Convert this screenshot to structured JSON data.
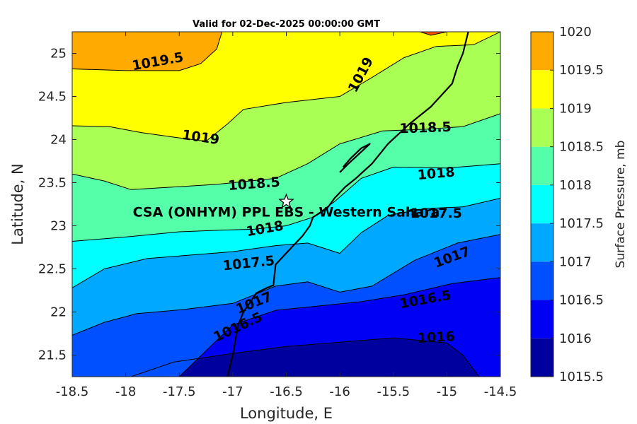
{
  "chart_data": {
    "type": "contour",
    "title": "Valid for 02-Dec-2025 00:00:00 GMT",
    "xlabel": "Longitude, E",
    "ylabel": "Latitude, N",
    "xlim": [
      -18.5,
      -14.5
    ],
    "ylim": [
      21.25,
      25.25
    ],
    "xticks": [
      "-18.5",
      "-18",
      "-17.5",
      "-17",
      "-16.5",
      "-16",
      "-15.5",
      "-15",
      "-14.5"
    ],
    "yticks": [
      "21.5",
      "22",
      "22.5",
      "23",
      "23.5",
      "24",
      "24.5",
      "25"
    ],
    "colorbar": {
      "label": "Surface Pressure, mb",
      "levels": [
        1015.5,
        1016,
        1016.5,
        1017,
        1017.5,
        1018,
        1018.5,
        1019,
        1019.5,
        1020
      ],
      "tick_labels": [
        "1015.5",
        "1016",
        "1016.5",
        "1017",
        "1017.5",
        "1018",
        "1018.5",
        "1019",
        "1019.5",
        "1020"
      ],
      "colors": [
        "#00009e",
        "#0000f5",
        "#0050ff",
        "#00a8ff",
        "#00ffff",
        "#55ffaa",
        "#aaff55",
        "#ffff00",
        "#ffaa00",
        "#ff5500"
      ]
    },
    "contour_lines": [
      {
        "level": 1016,
        "points": [
          [
            -17.95,
            21.25
          ],
          [
            -17.55,
            21.42
          ],
          [
            -17.0,
            21.52
          ],
          [
            -16.5,
            21.6
          ],
          [
            -16.0,
            21.65
          ],
          [
            -15.5,
            21.7
          ],
          [
            -15.0,
            21.64
          ],
          [
            -14.85,
            21.5
          ],
          [
            -14.7,
            21.25
          ]
        ]
      },
      {
        "level": 1016.5,
        "points": [
          [
            -17.5,
            21.25
          ],
          [
            -17.25,
            21.55
          ],
          [
            -17.0,
            21.85
          ],
          [
            -16.6,
            22.02
          ],
          [
            -16.2,
            22.07
          ],
          [
            -15.8,
            22.12
          ],
          [
            -15.4,
            22.2
          ],
          [
            -14.95,
            22.33
          ],
          [
            -14.5,
            22.4
          ]
        ]
      },
      {
        "level": 1017,
        "points": [
          [
            -18.5,
            21.73
          ],
          [
            -18.2,
            21.88
          ],
          [
            -17.9,
            21.98
          ],
          [
            -17.45,
            22.03
          ],
          [
            -17.0,
            22.1
          ],
          [
            -16.6,
            22.3
          ],
          [
            -16.3,
            22.35
          ],
          [
            -16.0,
            22.23
          ],
          [
            -15.7,
            22.3
          ],
          [
            -15.3,
            22.6
          ],
          [
            -14.9,
            22.8
          ],
          [
            -14.5,
            22.9
          ]
        ]
      },
      {
        "level": 1017.5,
        "points": [
          [
            -18.5,
            22.28
          ],
          [
            -18.2,
            22.5
          ],
          [
            -17.8,
            22.62
          ],
          [
            -17.4,
            22.66
          ],
          [
            -17.0,
            22.7
          ],
          [
            -16.6,
            22.77
          ],
          [
            -16.3,
            22.8
          ],
          [
            -16.0,
            22.68
          ],
          [
            -15.8,
            22.92
          ],
          [
            -15.55,
            23.12
          ],
          [
            -15.2,
            23.2
          ],
          [
            -14.85,
            23.22
          ],
          [
            -14.5,
            23.32
          ]
        ]
      },
      {
        "level": 1018,
        "points": [
          [
            -18.5,
            22.82
          ],
          [
            -18.0,
            22.87
          ],
          [
            -17.5,
            22.93
          ],
          [
            -17.1,
            22.95
          ],
          [
            -16.8,
            22.96
          ],
          [
            -16.5,
            23.0
          ],
          [
            -16.25,
            23.1
          ],
          [
            -16.05,
            23.28
          ],
          [
            -15.8,
            23.55
          ],
          [
            -15.5,
            23.68
          ],
          [
            -15.0,
            23.67
          ],
          [
            -14.5,
            23.72
          ]
        ]
      },
      {
        "level": 1018.5,
        "points": [
          [
            -18.5,
            23.6
          ],
          [
            -18.2,
            23.52
          ],
          [
            -17.95,
            23.42
          ],
          [
            -17.55,
            23.45
          ],
          [
            -17.15,
            23.48
          ],
          [
            -16.6,
            23.55
          ],
          [
            -16.3,
            23.72
          ],
          [
            -16.0,
            23.95
          ],
          [
            -15.6,
            24.1
          ],
          [
            -15.2,
            24.12
          ],
          [
            -14.85,
            24.15
          ],
          [
            -14.5,
            24.3
          ]
        ]
      },
      {
        "level": 1019,
        "points": [
          [
            -18.5,
            24.16
          ],
          [
            -18.15,
            24.15
          ],
          [
            -17.85,
            24.08
          ],
          [
            -17.5,
            24.02
          ],
          [
            -17.25,
            23.98
          ],
          [
            -17.05,
            24.18
          ],
          [
            -16.9,
            24.35
          ],
          [
            -16.5,
            24.43
          ],
          [
            -16.0,
            24.5
          ],
          [
            -15.7,
            24.72
          ],
          [
            -15.4,
            24.95
          ],
          [
            -15.1,
            25.08
          ],
          [
            -14.75,
            25.1
          ],
          [
            -14.5,
            25.25
          ]
        ]
      },
      {
        "level": 1019.5,
        "points": [
          [
            -18.5,
            24.82
          ],
          [
            -18.0,
            24.8
          ],
          [
            -17.5,
            24.8
          ],
          [
            -17.3,
            24.88
          ],
          [
            -17.15,
            25.05
          ],
          [
            -17.1,
            25.25
          ]
        ]
      },
      {
        "level": 1020,
        "points": [
          [
            -15.25,
            25.25
          ],
          [
            -15.15,
            25.21
          ],
          [
            -15.0,
            25.25
          ]
        ]
      }
    ],
    "contour_labels": [
      {
        "text": "1019.5",
        "lon": -17.7,
        "lat": 24.9,
        "angle": -10
      },
      {
        "text": "1019",
        "lon": -15.8,
        "lat": 24.75,
        "angle": -62
      },
      {
        "text": "1019",
        "lon": -17.3,
        "lat": 24.02,
        "angle": 8
      },
      {
        "text": "1018.5",
        "lon": -15.2,
        "lat": 24.13,
        "angle": -2
      },
      {
        "text": "1018.5",
        "lon": -16.8,
        "lat": 23.48,
        "angle": -4
      },
      {
        "text": "1018",
        "lon": -15.1,
        "lat": 23.6,
        "angle": -5
      },
      {
        "text": "1018",
        "lon": -16.7,
        "lat": 22.96,
        "angle": -10
      },
      {
        "text": "1017.5",
        "lon": -15.1,
        "lat": 23.14,
        "angle": 0
      },
      {
        "text": "1017.5",
        "lon": -16.85,
        "lat": 22.56,
        "angle": -6
      },
      {
        "text": "1017",
        "lon": -14.95,
        "lat": 22.63,
        "angle": -20
      },
      {
        "text": "1017",
        "lon": -16.8,
        "lat": 22.1,
        "angle": -22
      },
      {
        "text": "1016.5",
        "lon": -15.2,
        "lat": 22.14,
        "angle": -10
      },
      {
        "text": "1016.5",
        "lon": -16.95,
        "lat": 21.82,
        "angle": -25
      },
      {
        "text": "1016",
        "lon": -15.1,
        "lat": 21.7,
        "angle": -3
      }
    ],
    "coastline": [
      [
        -17.05,
        21.25
      ],
      [
        -17.0,
        21.5
      ],
      [
        -16.95,
        21.85
      ],
      [
        -16.9,
        22.0
      ],
      [
        -16.78,
        22.22
      ],
      [
        -16.68,
        22.28
      ],
      [
        -16.62,
        22.31
      ],
      [
        -16.6,
        22.55
      ],
      [
        -16.45,
        22.75
      ],
      [
        -16.35,
        22.88
      ],
      [
        -16.28,
        23.0
      ],
      [
        -16.25,
        23.1
      ],
      [
        -16.12,
        23.2
      ],
      [
        -16.05,
        23.32
      ],
      [
        -15.95,
        23.45
      ],
      [
        -15.85,
        23.55
      ],
      [
        -15.7,
        23.72
      ],
      [
        -15.55,
        23.95
      ],
      [
        -15.35,
        24.18
      ],
      [
        -15.15,
        24.38
      ],
      [
        -14.95,
        24.65
      ],
      [
        -14.9,
        24.85
      ],
      [
        -14.85,
        25.0
      ],
      [
        -14.8,
        25.25
      ]
    ],
    "peninsula": [
      [
        -16.0,
        23.62
      ],
      [
        -15.92,
        23.72
      ],
      [
        -15.85,
        23.8
      ],
      [
        -15.78,
        23.88
      ],
      [
        -15.72,
        23.95
      ],
      [
        -15.8,
        23.9
      ],
      [
        -15.9,
        23.78
      ],
      [
        -15.97,
        23.68
      ]
    ],
    "station": {
      "name": "CSA (ONHYM) PPL EBS - Western Sahara",
      "lon": -16.5,
      "lat": 23.28
    }
  }
}
